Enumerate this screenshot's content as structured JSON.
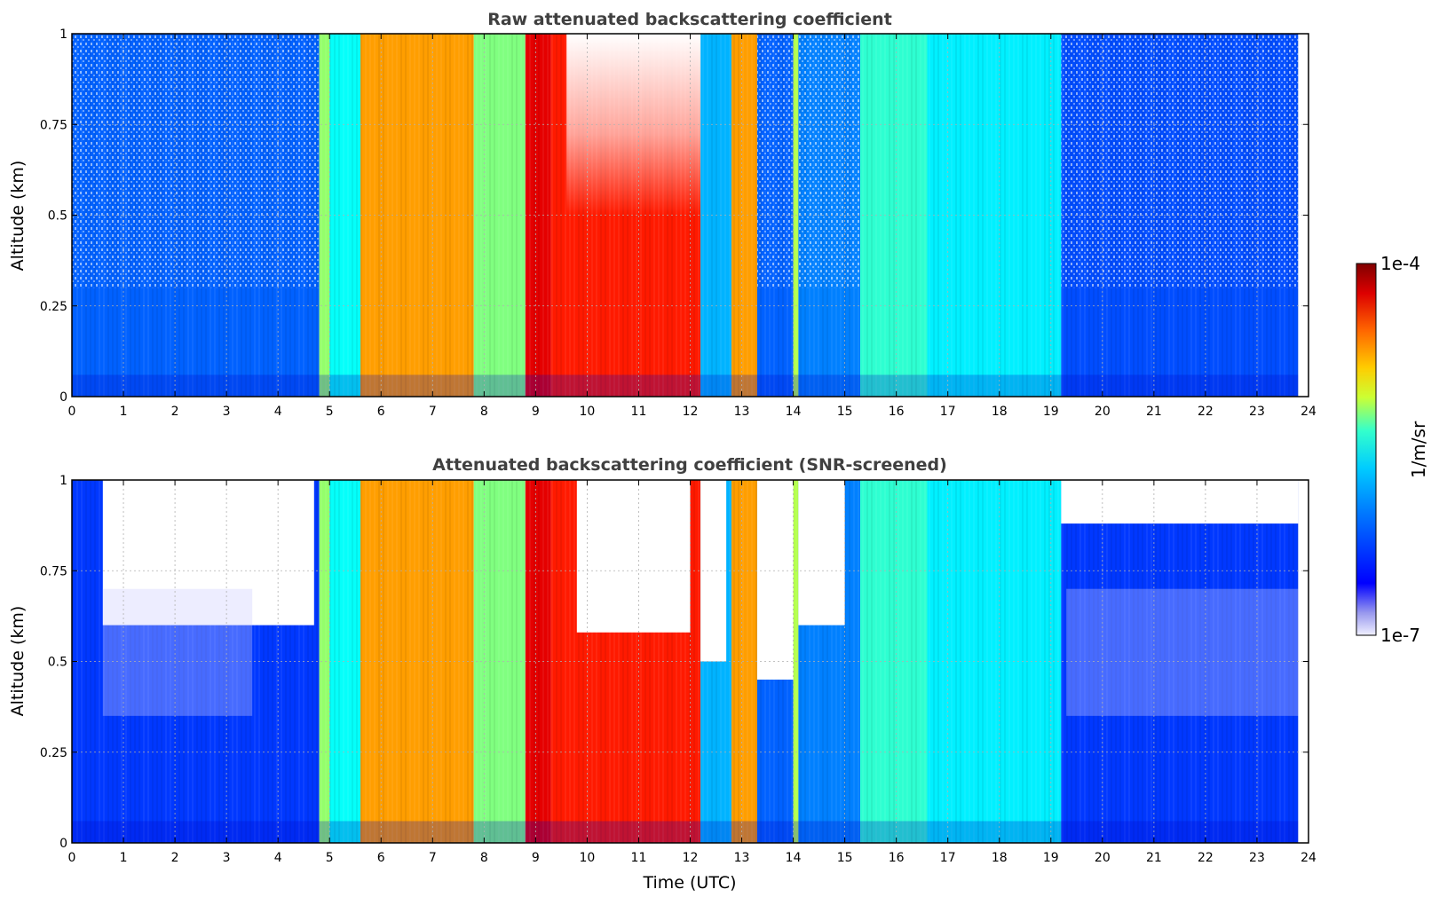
{
  "chart_data": [
    {
      "type": "heatmap",
      "title": "Raw attenuated backscattering coefficient",
      "xlabel": "",
      "ylabel": "Altitude (km)",
      "xlim": [
        0,
        24
      ],
      "ylim": [
        0,
        1
      ],
      "x_ticks": [
        "0",
        "1",
        "2",
        "3",
        "4",
        "5",
        "6",
        "7",
        "8",
        "9",
        "10",
        "11",
        "12",
        "13",
        "14",
        "15",
        "16",
        "17",
        "18",
        "19",
        "20",
        "21",
        "22",
        "23",
        "24"
      ],
      "y_ticks": [
        "0",
        "0.25",
        "0.5",
        "0.75",
        "1"
      ],
      "grid": true,
      "data_end_hour": 23.8,
      "bands": [
        {
          "x": [
            0,
            4.8
          ],
          "level": 0.22
        },
        {
          "x": [
            4.8,
            5.0
          ],
          "level": 0.52
        },
        {
          "x": [
            5.0,
            5.6
          ],
          "level": 0.38
        },
        {
          "x": [
            5.6,
            7.8
          ],
          "level": 0.72
        },
        {
          "x": [
            7.8,
            8.8
          ],
          "level": 0.5
        },
        {
          "x": [
            8.8,
            9.3
          ],
          "level": 0.9
        },
        {
          "x": [
            9.3,
            12.2
          ],
          "level": 0.85
        },
        {
          "x": [
            12.2,
            12.8
          ],
          "level": 0.3
        },
        {
          "x": [
            12.8,
            13.3
          ],
          "level": 0.72
        },
        {
          "x": [
            13.3,
            14.0
          ],
          "level": 0.22
        },
        {
          "x": [
            14.0,
            14.1
          ],
          "level": 0.55
        },
        {
          "x": [
            14.1,
            15.3
          ],
          "level": 0.25
        },
        {
          "x": [
            15.3,
            16.6
          ],
          "level": 0.42
        },
        {
          "x": [
            16.6,
            19.2
          ],
          "level": 0.36
        },
        {
          "x": [
            19.2,
            23.8
          ],
          "level": 0.2
        }
      ],
      "clear_region": {
        "x": [
          9.6,
          12.2
        ],
        "above_altitude": 0.5
      }
    },
    {
      "type": "heatmap",
      "title": "Attenuated backscattering coefficient (SNR-screened)",
      "xlabel": "Time (UTC)",
      "ylabel": "Altitude (km)",
      "xlim": [
        0,
        24
      ],
      "ylim": [
        0,
        1
      ],
      "x_ticks": [
        "0",
        "1",
        "2",
        "3",
        "4",
        "5",
        "6",
        "7",
        "8",
        "9",
        "10",
        "11",
        "12",
        "13",
        "14",
        "15",
        "16",
        "17",
        "18",
        "19",
        "20",
        "21",
        "22",
        "23",
        "24"
      ],
      "y_ticks": [
        "0",
        "0.25",
        "0.5",
        "0.75",
        "1"
      ],
      "grid": true,
      "data_end_hour": 23.8,
      "bands": [
        {
          "x": [
            0,
            4.8
          ],
          "level": 0.18
        },
        {
          "x": [
            4.8,
            5.0
          ],
          "level": 0.52
        },
        {
          "x": [
            5.0,
            5.6
          ],
          "level": 0.38
        },
        {
          "x": [
            5.6,
            7.8
          ],
          "level": 0.72
        },
        {
          "x": [
            7.8,
            8.8
          ],
          "level": 0.5
        },
        {
          "x": [
            8.8,
            9.3
          ],
          "level": 0.9
        },
        {
          "x": [
            9.3,
            12.2
          ],
          "level": 0.85
        },
        {
          "x": [
            12.2,
            12.8
          ],
          "level": 0.3
        },
        {
          "x": [
            12.8,
            13.3
          ],
          "level": 0.72
        },
        {
          "x": [
            13.3,
            14.0
          ],
          "level": 0.22
        },
        {
          "x": [
            14.0,
            14.1
          ],
          "level": 0.55
        },
        {
          "x": [
            14.1,
            15.3
          ],
          "level": 0.25
        },
        {
          "x": [
            15.3,
            16.6
          ],
          "level": 0.42
        },
        {
          "x": [
            16.6,
            19.2
          ],
          "level": 0.36
        },
        {
          "x": [
            19.2,
            23.8
          ],
          "level": 0.18
        }
      ],
      "screened_regions": [
        {
          "x": [
            0.6,
            4.7
          ],
          "above_altitude": 0.6
        },
        {
          "x": [
            9.8,
            12.0
          ],
          "above_altitude": 0.58
        },
        {
          "x": [
            12.2,
            12.7
          ],
          "above_altitude": 0.5
        },
        {
          "x": [
            13.3,
            14.0
          ],
          "above_altitude": 0.45
        },
        {
          "x": [
            14.1,
            15.0
          ],
          "above_altitude": 0.6
        },
        {
          "x": [
            19.2,
            23.8
          ],
          "above_altitude": 0.88
        }
      ]
    }
  ],
  "colorbar": {
    "label": "1/m/sr",
    "max_label": "1e-4",
    "min_label": "1e-7",
    "scale": "log",
    "colormap": "jet"
  }
}
